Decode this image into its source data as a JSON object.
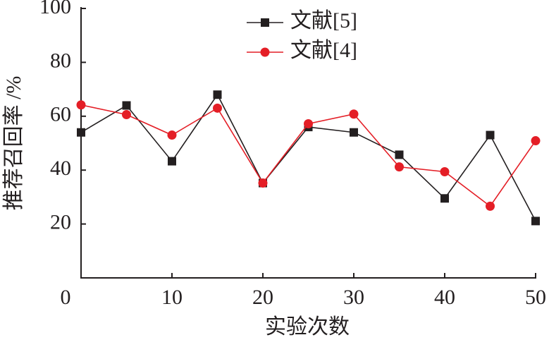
{
  "chart_data": {
    "type": "line",
    "x_label": "实验次数",
    "y_label": "推荐召回率 /%",
    "x": [
      0,
      5,
      10,
      15,
      20,
      25,
      30,
      35,
      40,
      45,
      50
    ],
    "series": [
      {
        "name": "文献[5]",
        "color": "#231f20",
        "marker": "square",
        "values": [
          54,
          64,
          43.3,
          68,
          35.2,
          56,
          54,
          45.7,
          29.5,
          53,
          21.1
        ]
      },
      {
        "name": "文献[4]",
        "color": "#e41e26",
        "marker": "circle",
        "values": [
          64.2,
          60.6,
          53,
          63,
          35.2,
          57.2,
          60.8,
          41.2,
          39.4,
          26.6,
          50.9
        ]
      }
    ],
    "xlim": [
      0,
      50
    ],
    "xticks": [
      0,
      10,
      20,
      30,
      40,
      50
    ],
    "ylim": [
      0,
      100
    ],
    "yticks": [
      20,
      40,
      60,
      80,
      100
    ],
    "legend": "top-center"
  }
}
